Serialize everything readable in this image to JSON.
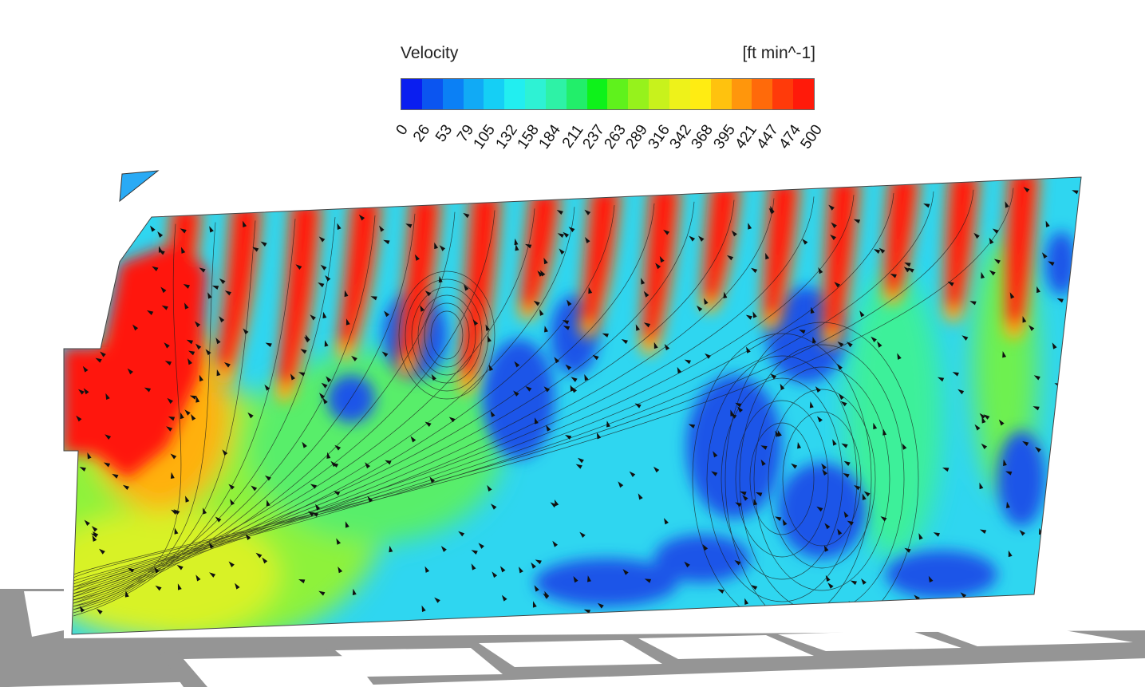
{
  "legend": {
    "title": "Velocity",
    "unit": "[ft min^-1]",
    "ticks": [
      "0",
      "26",
      "53",
      "79",
      "105",
      "132",
      "158",
      "184",
      "211",
      "237",
      "263",
      "289",
      "316",
      "342",
      "368",
      "395",
      "421",
      "447",
      "474",
      "500"
    ],
    "colors": [
      "#0a1ef0",
      "#0b55f0",
      "#0b80f5",
      "#11aaf5",
      "#15cff5",
      "#22eef0",
      "#2ef2d4",
      "#2ef2a6",
      "#22ee6a",
      "#0ef21a",
      "#5ff21c",
      "#96f21c",
      "#c8f21c",
      "#eef21a",
      "#ffec12",
      "#ffc20e",
      "#ff960c",
      "#ff6a0a",
      "#ff3a0a",
      "#ff1a0a"
    ]
  },
  "scene": {
    "base_color": "#2fd6f0",
    "jet_color": "#ff1410",
    "slow_color": "#1a55e8",
    "floor_color": "#949494",
    "jet_count": 15
  }
}
